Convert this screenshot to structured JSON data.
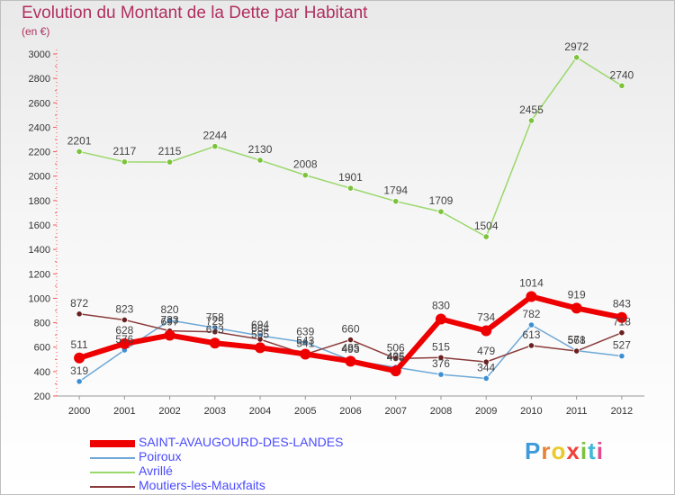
{
  "header": {
    "title": "Evolution du Montant de la Dette par Habitant",
    "subtitle": "(en €)"
  },
  "brand": {
    "name": "Proxiti",
    "letter_colors": [
      "#3f9ad9",
      "#e8823a",
      "#e8ca28",
      "#f0423a",
      "#7cc23a",
      "#3fb8d9",
      "#e34b8f"
    ]
  },
  "chart_data": {
    "type": "line",
    "title": "Evolution du Montant de la Dette par Habitant",
    "subtitle": "(en €)",
    "xlabel": "",
    "ylabel": "",
    "x": [
      2000,
      2001,
      2002,
      2003,
      2004,
      2005,
      2006,
      2007,
      2008,
      2009,
      2010,
      2011,
      2012
    ],
    "y_ticks": [
      200,
      400,
      600,
      800,
      1000,
      1200,
      1400,
      1600,
      1800,
      2000,
      2200,
      2400,
      2600,
      2800,
      3000
    ],
    "ylim": [
      200,
      3000
    ],
    "grid": false,
    "legend_position": "bottom-left",
    "series": [
      {
        "name": "Poiroux",
        "color": "#6fa8d6",
        "marker_color": "#3d8fd4",
        "values": [
          319,
          576,
          820,
          758,
          694,
          639,
          493,
          435,
          376,
          344,
          782,
          571,
          527
        ],
        "labels": [
          "319",
          "576",
          "820",
          "758",
          "694",
          "639",
          "493",
          "435",
          "376",
          "344",
          "782",
          "571",
          "527"
        ]
      },
      {
        "name": "Avrillé",
        "color": "#9ad86a",
        "marker_color": "#7cc23a",
        "values": [
          2201,
          2117,
          2115,
          2244,
          2130,
          2008,
          1901,
          1794,
          1709,
          1504,
          2455,
          2972,
          2740
        ],
        "labels": [
          "2201",
          "2117",
          "2115",
          "2244",
          "2130",
          "2008",
          "1901",
          "1794",
          "1709",
          "1504",
          "2455",
          "2972",
          "2740"
        ]
      },
      {
        "name": "Moutiers-les-Mauxfaits",
        "color": "#8a3a3a",
        "marker_color": "#6b2020",
        "values": [
          872,
          823,
          733,
          725,
          664,
          541,
          660,
          506,
          515,
          479,
          613,
          568,
          718
        ],
        "labels": [
          "872",
          "823",
          "733",
          "725",
          "664",
          "541",
          "660",
          "506",
          "515",
          "479",
          "613",
          "568",
          "718"
        ]
      },
      {
        "name": "SAINT-AVAUGOURD-DES-LANDES",
        "color": "#ee0000",
        "marker_color": "#ee0000",
        "values": [
          511,
          628,
          697,
          633,
          595,
          543,
          485,
          405,
          830,
          734,
          1014,
          919,
          843
        ],
        "labels": [
          "511",
          "628",
          "697",
          "633",
          "595",
          "543",
          "485",
          "405",
          "830",
          "734",
          "1014",
          "919",
          "843"
        ]
      }
    ],
    "legend_order": [
      "SAINT-AVAUGOURD-DES-LANDES",
      "Poiroux",
      "Avrillé",
      "Moutiers-les-Mauxfaits"
    ]
  }
}
